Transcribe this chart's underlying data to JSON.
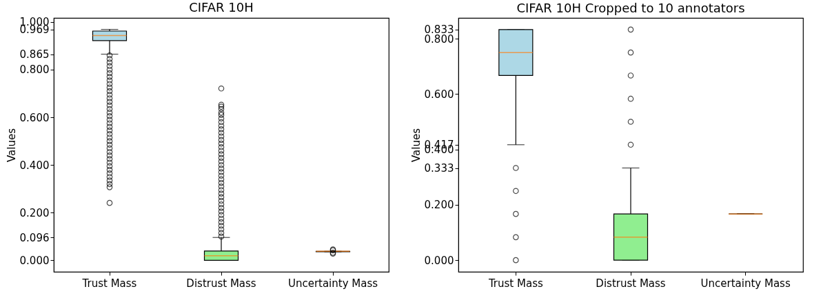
{
  "chart_data": [
    {
      "type": "box",
      "title": "CIFAR 10H",
      "ylabel": "Values",
      "categories": [
        "Trust Mass",
        "Distrust Mass",
        "Uncertainty Mass"
      ],
      "colors": [
        "#add8e6",
        "#90ee90",
        "#f08080"
      ],
      "ylim": [
        -0.048,
        1.017
      ],
      "yticks": [
        {
          "value": 0,
          "label": "0.000"
        },
        {
          "value": 0.096,
          "label": "0.096"
        },
        {
          "value": 0.2,
          "label": "0.200"
        },
        {
          "value": 0.4,
          "label": "0.400"
        },
        {
          "value": 0.6,
          "label": "0.600"
        },
        {
          "value": 0.8,
          "label": "0.800"
        },
        {
          "value": 0.865,
          "label": "0.865"
        },
        {
          "value": 0.969,
          "label": "0.969"
        },
        {
          "value": 1,
          "label": "1.000"
        }
      ],
      "boxes": [
        {
          "low": 0.865,
          "q1": 0.922,
          "median": 0.943,
          "q3": 0.962,
          "high": 0.969,
          "outliers": [
            0.241,
            0.307,
            0.32,
            0.335,
            0.35,
            0.365,
            0.38,
            0.395,
            0.41,
            0.425,
            0.44,
            0.455,
            0.47,
            0.485,
            0.5,
            0.515,
            0.53,
            0.545,
            0.56,
            0.575,
            0.59,
            0.605,
            0.62,
            0.635,
            0.65,
            0.665,
            0.68,
            0.695,
            0.71,
            0.725,
            0.74,
            0.755,
            0.77,
            0.785,
            0.8,
            0.815,
            0.83,
            0.845,
            0.86
          ]
        },
        {
          "low": 0,
          "q1": 0,
          "median": 0.019,
          "q3": 0.039,
          "high": 0.096,
          "outliers": [
            0.1,
            0.115,
            0.13,
            0.145,
            0.16,
            0.175,
            0.19,
            0.205,
            0.22,
            0.235,
            0.25,
            0.265,
            0.28,
            0.295,
            0.31,
            0.325,
            0.34,
            0.355,
            0.37,
            0.385,
            0.4,
            0.415,
            0.43,
            0.445,
            0.46,
            0.475,
            0.49,
            0.505,
            0.52,
            0.535,
            0.55,
            0.565,
            0.58,
            0.595,
            0.61,
            0.62,
            0.635,
            0.645,
            0.653,
            0.721
          ]
        },
        {
          "low": 0.036,
          "q1": 0.036,
          "median": 0.038,
          "q3": 0.038,
          "high": 0.038,
          "outliers": [
            0.028,
            0.032,
            0.042,
            0.046
          ]
        }
      ]
    },
    {
      "type": "box",
      "title": "CIFAR 10H Cropped to 10 annotators",
      "ylabel": "Values",
      "categories": [
        "Trust Mass",
        "Distrust Mass",
        "Uncertainty Mass"
      ],
      "colors": [
        "#add8e6",
        "#90ee90",
        null
      ],
      "ylim": [
        -0.042,
        0.875
      ],
      "yticks": [
        {
          "value": 0,
          "label": "0.000"
        },
        {
          "value": 0.2,
          "label": "0.200"
        },
        {
          "value": 0.333,
          "label": "0.333"
        },
        {
          "value": 0.4,
          "label": "0.400"
        },
        {
          "value": 0.417,
          "label": "0.417"
        },
        {
          "value": 0.6,
          "label": "0.600"
        },
        {
          "value": 0.8,
          "label": "0.800"
        },
        {
          "value": 0.833,
          "label": "0.833"
        }
      ],
      "boxes": [
        {
          "low": 0.417,
          "q1": 0.667,
          "median": 0.75,
          "q3": 0.833,
          "high": 0.833,
          "outliers": [
            0,
            0.083,
            0.167,
            0.25,
            0.333
          ]
        },
        {
          "low": 0,
          "q1": 0,
          "median": 0.083,
          "q3": 0.167,
          "high": 0.333,
          "outliers": [
            0.417,
            0.5,
            0.583,
            0.667,
            0.75,
            0.833
          ]
        },
        {
          "low": 0.167,
          "q1": 0.167,
          "median": 0.167,
          "q3": 0.167,
          "high": 0.167
        }
      ]
    }
  ]
}
